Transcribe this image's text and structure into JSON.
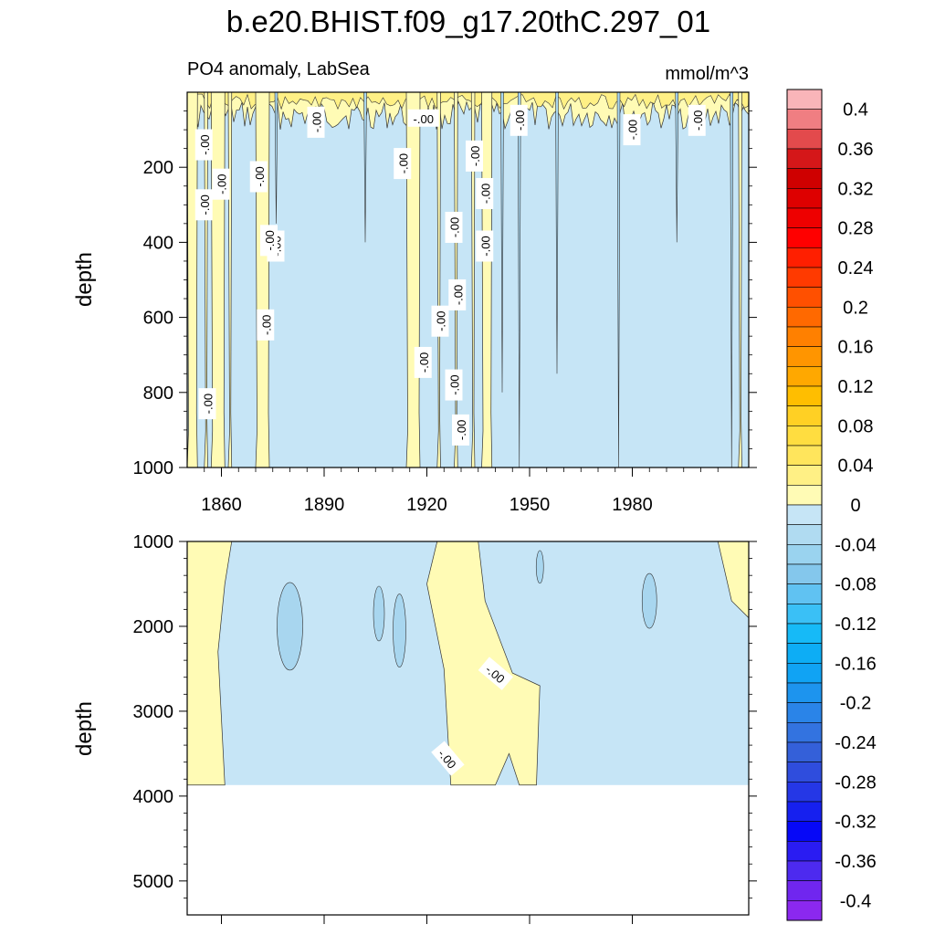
{
  "title": "b.e20.BHIST.f09_g17.20thC.297_01",
  "subtitle_left": "PO4 anomaly, LabSea",
  "subtitle_right": "mmol/m^3",
  "chart_data": [
    {
      "type": "heatmap",
      "panel": "upper",
      "ylabel": "depth",
      "y_reversed": true,
      "xlim": [
        1850,
        2014
      ],
      "ylim": [
        0,
        1000
      ],
      "xticks": [
        1860,
        1890,
        1920,
        1950,
        1980
      ],
      "xtick_labels": [
        "1860",
        "1890",
        "1920",
        "1950",
        "1980"
      ],
      "yticks": [
        200,
        400,
        600,
        800,
        1000
      ],
      "ytick_labels": [
        "200",
        "400",
        "600",
        "800",
        "1000"
      ],
      "contour_label": "-.00",
      "contour_label_count": 23,
      "positive_bands_years": [
        [
          1850,
          1853
        ],
        [
          1855,
          1856
        ],
        [
          1857,
          1861
        ],
        [
          1862,
          1863
        ],
        [
          1870,
          1874
        ],
        [
          1914,
          1918
        ],
        [
          1923,
          1924
        ],
        [
          1928,
          1929
        ],
        [
          1933,
          1934
        ],
        [
          1936,
          1939
        ],
        [
          2011,
          2012
        ]
      ],
      "positive_surface_depth_max": 100
    },
    {
      "type": "heatmap",
      "panel": "lower",
      "ylabel": "depth",
      "y_reversed": true,
      "xlim": [
        1850,
        2014
      ],
      "ylim": [
        1000,
        5400
      ],
      "yticks": [
        1000,
        2000,
        3000,
        4000,
        5000
      ],
      "ytick_labels": [
        "1000",
        "2000",
        "3000",
        "4000",
        "5000"
      ],
      "sea_floor_depth": 3870,
      "contour_label": "-.00",
      "contour_label_count": 2,
      "positive_regions_years_depths": [
        {
          "years": [
            1850,
            1862
          ],
          "depths": [
            1000,
            3870
          ]
        },
        {
          "years": [
            1921,
            1948
          ],
          "depths": [
            1000,
            3870
          ]
        },
        {
          "years": [
            2005,
            2014
          ],
          "depths": [
            1000,
            1900
          ]
        }
      ]
    }
  ],
  "colorbar": {
    "labels": [
      "0.4",
      "0.36",
      "0.32",
      "0.28",
      "0.24",
      "0.2",
      "0.16",
      "0.12",
      "0.08",
      "0.04",
      "0",
      "-0.04",
      "-0.08",
      "-0.12",
      "-0.16",
      "-0.2",
      "-0.24",
      "-0.28",
      "-0.32",
      "-0.36",
      "-0.4"
    ],
    "colors": [
      "#f9b5b9",
      "#f07e82",
      "#e34a4c",
      "#d51719",
      "#cf0000",
      "#de0000",
      "#ee0000",
      "#ff0000",
      "#ff1f00",
      "#ff3a00",
      "#ff5000",
      "#ff6900",
      "#ff8000",
      "#ff9500",
      "#ffa800",
      "#ffbe00",
      "#ffd024",
      "#ffdd40",
      "#ffe55c",
      "#fff085",
      "#fffbb5",
      "#c6e5f6",
      "#b0dbf1",
      "#9ad3ef",
      "#84c7ec",
      "#60c2f2",
      "#3ac0f6",
      "#16baf7",
      "#0dadf5",
      "#10a3f4",
      "#1d94ee",
      "#2a84e8",
      "#3373e0",
      "#3460d9",
      "#2f4ddd",
      "#2537e6",
      "#1620ef",
      "#0608f7",
      "#2a1cf2",
      "#4d2aef",
      "#7026ef",
      "#8b28ef"
    ],
    "positive_fill": "#fffbb5",
    "negative_fill": "#c6e5f6"
  }
}
